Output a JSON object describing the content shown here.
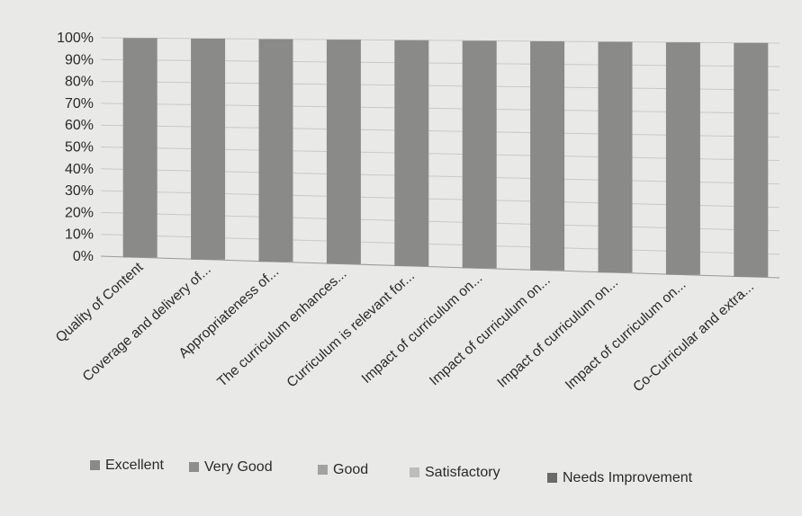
{
  "chart_data": {
    "type": "bar",
    "stacked": true,
    "categories": [
      "Quality of Content",
      "Coverage and delivery of...",
      "Appropriateness of...",
      "The curriculum enhances...",
      "Curriculum is relevant for...",
      "Impact of curriculum on...",
      "Impact of curriculum on...",
      "Impact of curriculum on...",
      "Impact of curriculum on...",
      "Co-Curricular and extra..."
    ],
    "series": [
      {
        "name": "Excellent",
        "values": [
          100,
          100,
          100,
          100,
          100,
          100,
          100,
          100,
          100,
          100
        ]
      },
      {
        "name": "Very Good",
        "values": [
          0,
          0,
          0,
          0,
          0,
          0,
          0,
          0,
          0,
          0
        ]
      },
      {
        "name": "Good",
        "values": [
          0,
          0,
          0,
          0,
          0,
          0,
          0,
          0,
          0,
          0
        ]
      },
      {
        "name": "Satisfactory",
        "values": [
          0,
          0,
          0,
          0,
          0,
          0,
          0,
          0,
          0,
          0
        ]
      },
      {
        "name": "Needs Improvement",
        "values": [
          0,
          0,
          0,
          0,
          0,
          0,
          0,
          0,
          0,
          0
        ]
      }
    ],
    "yticks": [
      "0%",
      "10%",
      "20%",
      "30%",
      "40%",
      "50%",
      "60%",
      "70%",
      "80%",
      "90%",
      "100%"
    ],
    "ylim": [
      0,
      100
    ],
    "title": "",
    "xlabel": "",
    "ylabel": "",
    "grid": true,
    "legend_position": "bottom",
    "colors": {
      "Excellent": "#8a8a88",
      "Very Good": "#8e8e8c",
      "Good": "#a2a2a0",
      "Satisfactory": "#bdbdbb",
      "Needs Improvement": "#6a6a68",
      "bar": "#8b8b89",
      "background": "#e9e9e7"
    }
  }
}
